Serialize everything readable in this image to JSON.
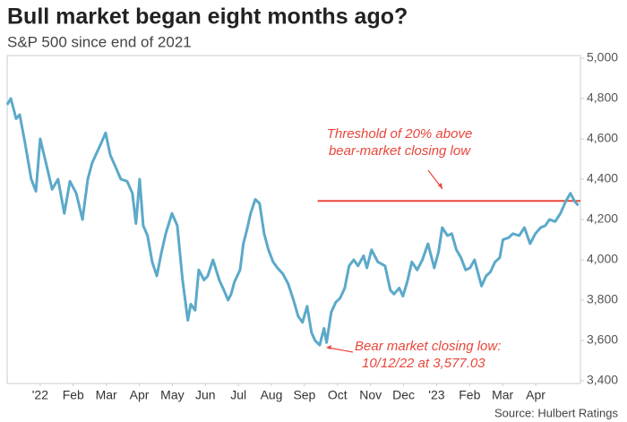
{
  "chart_data": {
    "type": "line",
    "title": "Bull market began eight months ago?",
    "subtitle": "S&P 500 since end of 2021",
    "source": "Source: Hulbert Ratings",
    "xlim": [
      0,
      17.3
    ],
    "ylim": [
      3400,
      5000
    ],
    "yticks": [
      {
        "value": 3400,
        "label": "3,400"
      },
      {
        "value": 3600,
        "label": "3,600"
      },
      {
        "value": 3800,
        "label": "3,800"
      },
      {
        "value": 4000,
        "label": "4,000"
      },
      {
        "value": 4200,
        "label": "4,200"
      },
      {
        "value": 4400,
        "label": "4,400"
      },
      {
        "value": 4600,
        "label": "4,600"
      },
      {
        "value": 4800,
        "label": "4,800"
      },
      {
        "value": 5000,
        "label": "5,000"
      }
    ],
    "xticks": [
      {
        "value": 1,
        "label": "'22"
      },
      {
        "value": 2,
        "label": "Feb"
      },
      {
        "value": 3,
        "label": "Mar"
      },
      {
        "value": 4,
        "label": "Apr"
      },
      {
        "value": 5,
        "label": "May"
      },
      {
        "value": 6,
        "label": "Jun"
      },
      {
        "value": 7,
        "label": "Jul"
      },
      {
        "value": 8,
        "label": "Aug"
      },
      {
        "value": 9,
        "label": "Sep"
      },
      {
        "value": 10,
        "label": "Oct"
      },
      {
        "value": 11,
        "label": "Nov"
      },
      {
        "value": 12,
        "label": "Dec"
      },
      {
        "value": 13,
        "label": "'23"
      },
      {
        "value": 14,
        "label": "Feb"
      },
      {
        "value": 15,
        "label": "Mar"
      },
      {
        "value": 16,
        "label": "Apr"
      }
    ],
    "grid": false,
    "series": [
      {
        "name": "S&P 500",
        "color": "#5ba9c9",
        "x": [
          0,
          0.11,
          0.27,
          0.38,
          0.54,
          0.73,
          0.87,
          1.0,
          1.19,
          1.36,
          1.54,
          1.73,
          1.9,
          2.09,
          2.28,
          2.44,
          2.57,
          2.71,
          2.85,
          2.98,
          3.12,
          3.31,
          3.44,
          3.63,
          3.79,
          3.9,
          4.01,
          4.12,
          4.25,
          4.39,
          4.53,
          4.66,
          4.8,
          4.99,
          5.15,
          5.31,
          5.47,
          5.56,
          5.69,
          5.8,
          5.96,
          6.07,
          6.23,
          6.42,
          6.56,
          6.69,
          6.78,
          6.88,
          7.05,
          7.15,
          7.26,
          7.37,
          7.51,
          7.64,
          7.78,
          7.91,
          8.05,
          8.18,
          8.35,
          8.51,
          8.67,
          8.81,
          8.94,
          9.08,
          9.21,
          9.32,
          9.46,
          9.59,
          9.67,
          9.81,
          9.95,
          10.08,
          10.22,
          10.35,
          10.49,
          10.62,
          10.79,
          10.89,
          11.03,
          11.22,
          11.44,
          11.6,
          11.71,
          11.87,
          11.98,
          12.11,
          12.25,
          12.41,
          12.57,
          12.74,
          12.93,
          13.06,
          13.17,
          13.33,
          13.46,
          13.6,
          13.74,
          13.88,
          14.01,
          14.15,
          14.36,
          14.5,
          14.63,
          14.77,
          14.91,
          15.01,
          15.18,
          15.31,
          15.5,
          15.66,
          15.83,
          15.99,
          16.15,
          16.29,
          16.42,
          16.59,
          16.75,
          16.91,
          17.05,
          17.18,
          17.29
        ],
        "values": [
          4770,
          4800,
          4700,
          4720,
          4580,
          4400,
          4340,
          4600,
          4470,
          4350,
          4400,
          4230,
          4390,
          4330,
          4200,
          4400,
          4480,
          4530,
          4580,
          4630,
          4520,
          4450,
          4400,
          4390,
          4330,
          4180,
          4400,
          4170,
          4120,
          3990,
          3920,
          4030,
          4130,
          4230,
          4170,
          3900,
          3700,
          3780,
          3750,
          3950,
          3900,
          3920,
          4000,
          3900,
          3850,
          3800,
          3830,
          3890,
          3950,
          4080,
          4150,
          4230,
          4300,
          4280,
          4130,
          4050,
          3990,
          3960,
          3930,
          3880,
          3800,
          3720,
          3690,
          3770,
          3640,
          3600,
          3577.03,
          3660,
          3590,
          3740,
          3790,
          3810,
          3860,
          3970,
          4000,
          3970,
          4020,
          3960,
          4050,
          3990,
          3970,
          3850,
          3830,
          3860,
          3820,
          3890,
          3990,
          3950,
          4000,
          4080,
          3960,
          4040,
          4160,
          4120,
          4130,
          4050,
          4010,
          3950,
          3960,
          4000,
          3870,
          3920,
          3940,
          3990,
          4010,
          4100,
          4110,
          4130,
          4120,
          4160,
          4080,
          4130,
          4160,
          4170,
          4200,
          4190,
          4230,
          4290,
          4330,
          4290,
          4270
        ]
      }
    ],
    "threshold": {
      "value": 4292,
      "x_start": 9.4,
      "color": "#e8463a",
      "label": [
        "Threshold of 20% above",
        "bear-market closing low"
      ]
    },
    "low_annotation": [
      "Bear market closing low:",
      "10/12/22 at 3,577.03"
    ]
  }
}
